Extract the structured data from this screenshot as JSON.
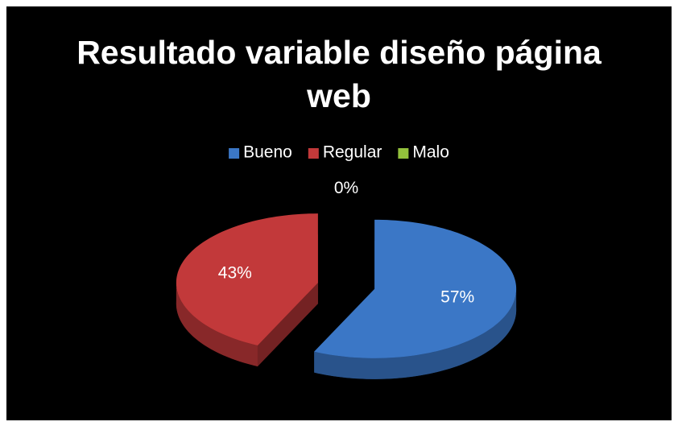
{
  "chart_data": {
    "type": "pie",
    "title": "Resultado variable diseño página web",
    "categories": [
      "Bueno",
      "Regular",
      "Malo"
    ],
    "values": [
      57,
      43,
      0
    ],
    "value_labels": [
      "57%",
      "43%",
      "0%"
    ],
    "colors": [
      "#3b77c6",
      "#c2393a",
      "#93c13c"
    ],
    "legend": "top"
  }
}
